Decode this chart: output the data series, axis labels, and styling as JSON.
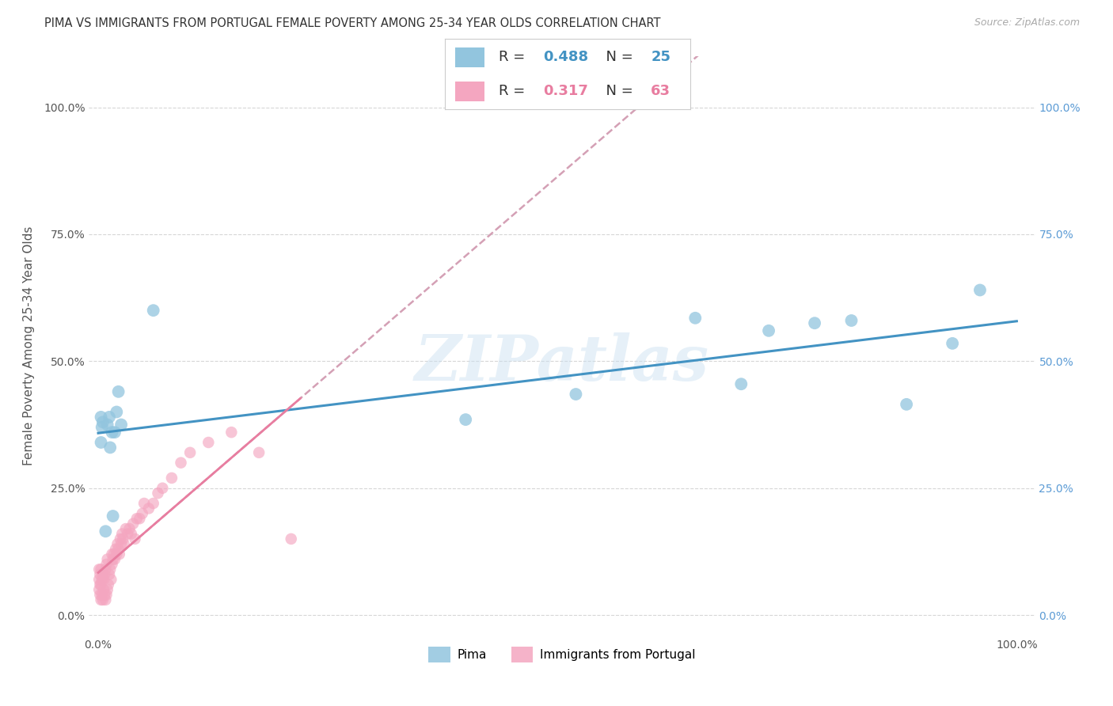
{
  "title": "PIMA VS IMMIGRANTS FROM PORTUGAL FEMALE POVERTY AMONG 25-34 YEAR OLDS CORRELATION CHART",
  "source": "Source: ZipAtlas.com",
  "ylabel": "Female Poverty Among 25-34 Year Olds",
  "pima_R": 0.488,
  "pima_N": 25,
  "portugal_R": 0.317,
  "portugal_N": 63,
  "pima_color": "#92c5de",
  "portugal_color": "#f4a6c0",
  "pima_line_color": "#4393c3",
  "portugal_line_color": "#e87da0",
  "portugal_line_dash_color": "#d4a0b5",
  "background_color": "#ffffff",
  "watermark": "ZIPatlas",
  "pima_x": [
    0.003,
    0.003,
    0.004,
    0.005,
    0.008,
    0.01,
    0.012,
    0.013,
    0.015,
    0.016,
    0.018,
    0.02,
    0.022,
    0.025,
    0.06,
    0.4,
    0.52,
    0.65,
    0.7,
    0.73,
    0.78,
    0.82,
    0.88,
    0.93,
    0.96
  ],
  "pima_y": [
    0.34,
    0.39,
    0.37,
    0.38,
    0.165,
    0.375,
    0.39,
    0.33,
    0.36,
    0.195,
    0.36,
    0.4,
    0.44,
    0.375,
    0.6,
    0.385,
    0.435,
    0.585,
    0.455,
    0.56,
    0.575,
    0.58,
    0.415,
    0.535,
    0.64
  ],
  "portugal_x": [
    0.001,
    0.001,
    0.001,
    0.002,
    0.002,
    0.002,
    0.003,
    0.003,
    0.003,
    0.004,
    0.004,
    0.005,
    0.005,
    0.006,
    0.006,
    0.007,
    0.007,
    0.008,
    0.008,
    0.009,
    0.009,
    0.01,
    0.01,
    0.011,
    0.012,
    0.013,
    0.014,
    0.015,
    0.015,
    0.016,
    0.017,
    0.018,
    0.019,
    0.02,
    0.021,
    0.022,
    0.023,
    0.024,
    0.025,
    0.026,
    0.027,
    0.028,
    0.03,
    0.032,
    0.034,
    0.036,
    0.038,
    0.04,
    0.042,
    0.045,
    0.048,
    0.05,
    0.055,
    0.06,
    0.065,
    0.07,
    0.08,
    0.09,
    0.1,
    0.12,
    0.145,
    0.175,
    0.21
  ],
  "portugal_y": [
    0.05,
    0.07,
    0.09,
    0.04,
    0.06,
    0.08,
    0.03,
    0.06,
    0.09,
    0.04,
    0.07,
    0.03,
    0.08,
    0.05,
    0.07,
    0.04,
    0.08,
    0.03,
    0.09,
    0.04,
    0.1,
    0.05,
    0.11,
    0.06,
    0.08,
    0.09,
    0.07,
    0.1,
    0.12,
    0.11,
    0.12,
    0.11,
    0.13,
    0.12,
    0.14,
    0.13,
    0.12,
    0.15,
    0.14,
    0.16,
    0.15,
    0.14,
    0.17,
    0.16,
    0.17,
    0.16,
    0.18,
    0.15,
    0.19,
    0.19,
    0.2,
    0.22,
    0.21,
    0.22,
    0.24,
    0.25,
    0.27,
    0.3,
    0.32,
    0.34,
    0.36,
    0.32,
    0.15
  ],
  "ytick_labels": [
    "0.0%",
    "25.0%",
    "50.0%",
    "75.0%",
    "100.0%"
  ],
  "ytick_values": [
    0.0,
    0.25,
    0.5,
    0.75,
    1.0
  ],
  "xtick_labels": [
    "0.0%",
    "100.0%"
  ],
  "xtick_values": [
    0.0,
    1.0
  ],
  "grid_color": "#cccccc",
  "title_fontsize": 10.5,
  "axis_label_fontsize": 11,
  "tick_fontsize": 10,
  "legend_fontsize": 13,
  "right_tick_color": "#5b9bd5"
}
